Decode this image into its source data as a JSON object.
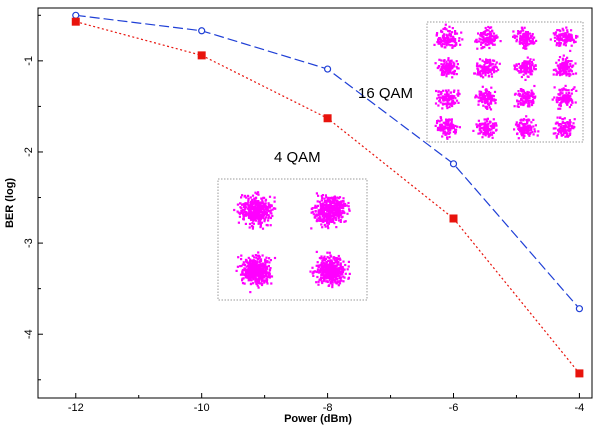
{
  "chart_data": {
    "type": "line",
    "xlabel": "Power (dBm)",
    "ylabel": "BER (log)",
    "xlim": [
      -12.6,
      -3.8
    ],
    "ylim": [
      -4.7,
      -0.42
    ],
    "xticks": [
      -12,
      -10,
      -8,
      -6,
      -4
    ],
    "yticks": [
      -1,
      -2,
      -3,
      -4
    ],
    "grid": false,
    "series": [
      {
        "name": "16 QAM",
        "color": "#1f3fd6",
        "marker": "circle",
        "line_style": "dashed",
        "x": [
          -12,
          -10,
          -8,
          -6,
          -4
        ],
        "y": [
          -0.5,
          -0.67,
          -1.09,
          -2.13,
          -3.72
        ]
      },
      {
        "name": "4 QAM",
        "color": "#e8130c",
        "marker": "square",
        "line_style": "dotted",
        "x": [
          -12,
          -10,
          -8,
          -6,
          -4
        ],
        "y": [
          -0.57,
          -0.94,
          -1.63,
          -2.73,
          -4.43
        ]
      }
    ],
    "insets": [
      {
        "name": "16 QAM constellation",
        "grid": [
          4,
          4
        ],
        "color": "#ff00ff"
      },
      {
        "name": "4 QAM constellation",
        "grid": [
          2,
          2
        ],
        "color": "#ff00ff"
      }
    ]
  }
}
